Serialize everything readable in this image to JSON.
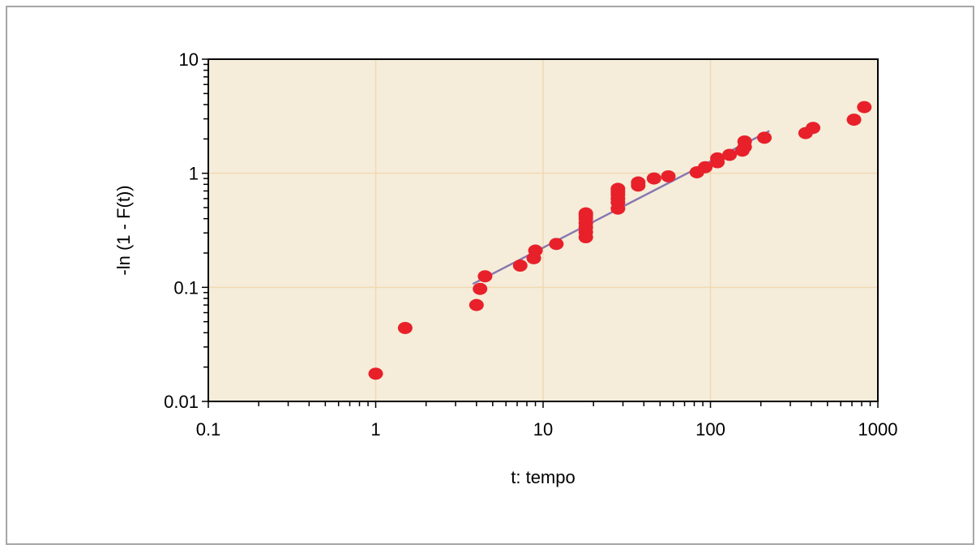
{
  "chart_data": {
    "type": "scatter",
    "title": "",
    "xlabel": "t: tempo",
    "ylabel": "-ln (1 - F(t))",
    "x_scale": "log",
    "y_scale": "log",
    "xlim": [
      0.1,
      1000
    ],
    "ylim": [
      0.01,
      10
    ],
    "x_ticks": [
      0.1,
      1,
      10,
      100,
      1000
    ],
    "x_tick_labels": [
      "0.1",
      "1",
      "10",
      "100",
      "1000"
    ],
    "y_ticks": [
      0.01,
      0.1,
      1,
      10
    ],
    "y_tick_labels": [
      "0.01",
      "0.1",
      "1",
      "10"
    ],
    "grid": true,
    "legend": "none",
    "colors": {
      "plot_background": "#f5edd9",
      "gridline": "#f2d8b4",
      "points": "#e8202a",
      "trendline": "#8878b0",
      "frame": "#a6a6a6"
    },
    "series": [
      {
        "type": "scatter",
        "x": [
          1,
          1.5,
          4,
          4.2,
          4.5,
          7.3,
          8.8,
          9,
          12,
          18,
          18,
          18,
          18,
          18,
          18,
          18,
          28,
          28,
          28,
          28,
          28,
          28,
          37,
          37,
          46,
          56,
          83,
          93,
          110,
          110,
          130,
          155,
          160,
          160,
          210,
          370,
          410,
          720,
          830
        ],
        "y": [
          0.0175,
          0.044,
          0.07,
          0.097,
          0.125,
          0.155,
          0.18,
          0.21,
          0.24,
          0.275,
          0.305,
          0.335,
          0.365,
          0.4,
          0.425,
          0.445,
          0.49,
          0.555,
          0.6,
          0.65,
          0.69,
          0.73,
          0.78,
          0.83,
          0.9,
          0.94,
          1.02,
          1.13,
          1.25,
          1.35,
          1.45,
          1.58,
          1.7,
          1.9,
          2.05,
          2.25,
          2.5,
          2.95,
          3.8
        ]
      },
      {
        "type": "line",
        "x": [
          3.8,
          225
        ],
        "y": [
          0.107,
          2.35
        ]
      }
    ]
  }
}
